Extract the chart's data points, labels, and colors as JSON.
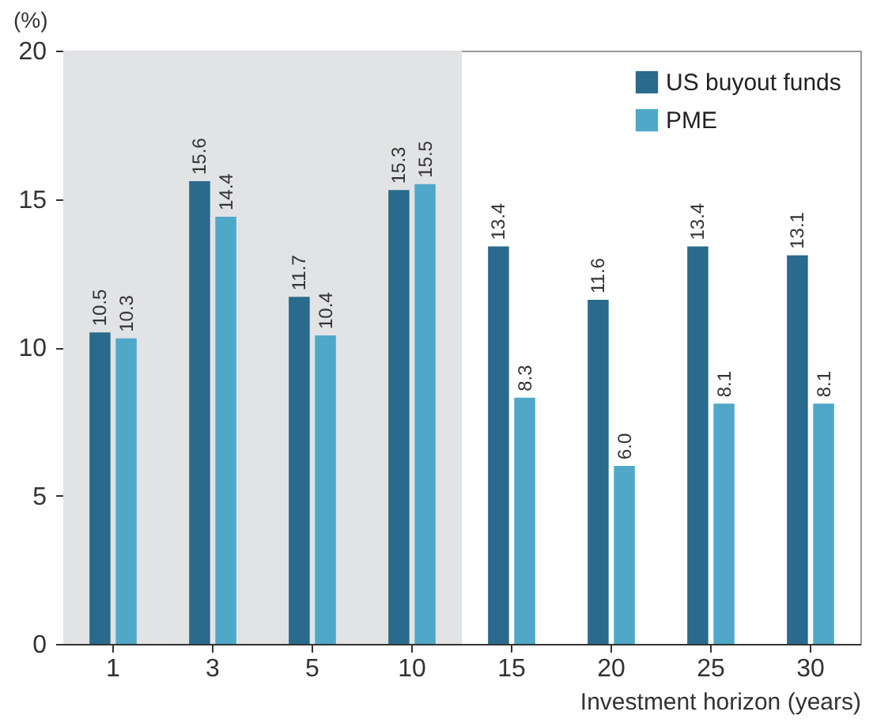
{
  "chart_data": {
    "type": "bar",
    "ylabel": "(%)",
    "xlabel": "Investment horizon (years)",
    "categories": [
      "1",
      "3",
      "5",
      "10",
      "15",
      "20",
      "25",
      "30"
    ],
    "series": [
      {
        "name": "US buyout funds",
        "color": "#2a6a8c",
        "values": [
          10.5,
          15.6,
          11.7,
          15.3,
          13.4,
          11.6,
          13.4,
          13.1
        ],
        "value_labels": [
          "10.5",
          "15.6",
          "11.7",
          "15.3",
          "13.4",
          "11.6",
          "13.4",
          "13.1"
        ]
      },
      {
        "name": "PME",
        "color": "#4fa8c8",
        "values": [
          10.3,
          14.4,
          10.4,
          15.5,
          8.3,
          6.0,
          8.1,
          8.1
        ],
        "value_labels": [
          "10.3",
          "14.4",
          "10.4",
          "15.5",
          "8.3",
          "6.0",
          "8.1",
          "8.1"
        ]
      }
    ],
    "ylim": [
      0,
      20
    ],
    "yticks": [
      0,
      5,
      10,
      15,
      20
    ],
    "legend": "top right",
    "bands": [
      {
        "axis": "x",
        "from": "1",
        "to": "10",
        "color": "#e2e3e5"
      }
    ]
  }
}
